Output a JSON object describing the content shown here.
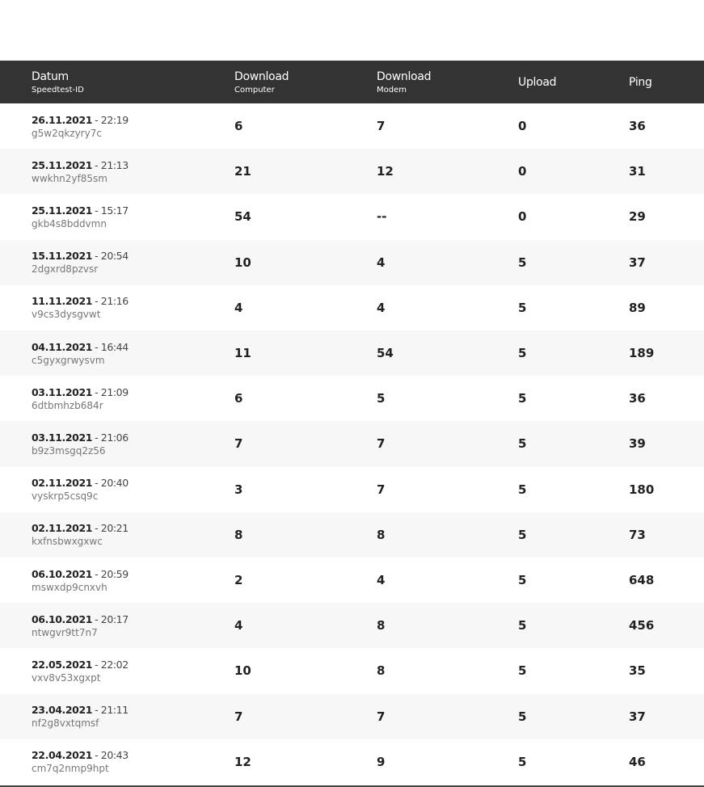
{
  "table": {
    "columns": [
      {
        "label": "Datum",
        "sub": "Speedtest-ID"
      },
      {
        "label": "Download",
        "sub": "Computer"
      },
      {
        "label": "Download",
        "sub": "Modem"
      },
      {
        "label": "Upload"
      },
      {
        "label": "Ping"
      }
    ],
    "rows": [
      {
        "date": "26.11.2021",
        "time": "- 22:19",
        "id": "g5w2qkzyry7c",
        "computer": 6,
        "modem": 7,
        "upload": 0,
        "ping": 36
      },
      {
        "date": "25.11.2021",
        "time": "- 21:13",
        "id": "wwkhn2yf85sm",
        "computer": 21,
        "modem": 12,
        "upload": 0,
        "ping": 31
      },
      {
        "date": "25.11.2021",
        "time": "- 15:17",
        "id": "gkb4s8bddvmn",
        "computer": 54,
        "modem": "--",
        "upload": 0,
        "ping": 29
      },
      {
        "date": "15.11.2021",
        "time": "- 20:54",
        "id": "2dgxrd8pzvsr",
        "computer": 10,
        "modem": 4,
        "upload": 5,
        "ping": 37
      },
      {
        "date": "11.11.2021",
        "time": "- 21:16",
        "id": "v9cs3dysgvwt",
        "computer": 4,
        "modem": 4,
        "upload": 5,
        "ping": 89
      },
      {
        "date": "04.11.2021",
        "time": "- 16:44",
        "id": "c5gyxgrwysvm",
        "computer": 11,
        "modem": 54,
        "upload": 5,
        "ping": 189
      },
      {
        "date": "03.11.2021",
        "time": "- 21:09",
        "id": "6dtbmhzb684r",
        "computer": 6,
        "modem": 5,
        "upload": 5,
        "ping": 36
      },
      {
        "date": "03.11.2021",
        "time": "- 21:06",
        "id": "b9z3msgq2z56",
        "computer": 7,
        "modem": 7,
        "upload": 5,
        "ping": 39
      },
      {
        "date": "02.11.2021",
        "time": "- 20:40",
        "id": "vyskrp5csq9c",
        "computer": 3,
        "modem": 7,
        "upload": 5,
        "ping": 180
      },
      {
        "date": "02.11.2021",
        "time": "- 20:21",
        "id": "kxfnsbwxgxwc",
        "computer": 8,
        "modem": 8,
        "upload": 5,
        "ping": 73
      },
      {
        "date": "06.10.2021",
        "time": "- 20:59",
        "id": "mswxdp9cnxvh",
        "computer": 2,
        "modem": 4,
        "upload": 5,
        "ping": 648
      },
      {
        "date": "06.10.2021",
        "time": "- 20:17",
        "id": "ntwgvr9tt7n7",
        "computer": 4,
        "modem": 8,
        "upload": 5,
        "ping": 456
      },
      {
        "date": "22.05.2021",
        "time": "- 22:02",
        "id": "vxv8v53xgxpt",
        "computer": 10,
        "modem": 8,
        "upload": 5,
        "ping": 35
      },
      {
        "date": "23.04.2021",
        "time": "- 21:11",
        "id": "nf2g8vxtqmsf",
        "computer": 7,
        "modem": 7,
        "upload": 5,
        "ping": 37
      },
      {
        "date": "22.04.2021",
        "time": "- 20:43",
        "id": "cm7q2nmp9hpt",
        "computer": 12,
        "modem": 9,
        "upload": 5,
        "ping": 46
      }
    ]
  }
}
